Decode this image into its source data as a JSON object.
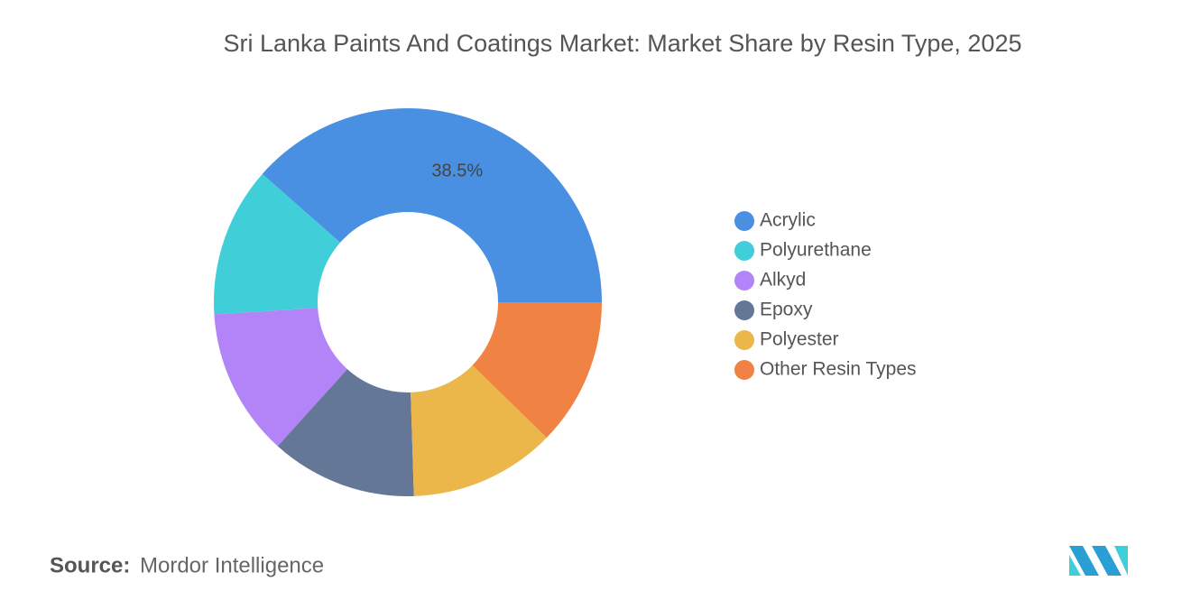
{
  "chart_data": {
    "type": "donut",
    "title": "Sri Lanka Paints And Coatings Market: Market Share by Resin Type, 2025",
    "categories": [
      "Acrylic",
      "Polyurethane",
      "Alkyd",
      "Epoxy",
      "Polyester",
      "Other Resin Types"
    ],
    "values": [
      38.5,
      12.5,
      12.3,
      12.2,
      12.2,
      12.3
    ],
    "value_labels": [
      "38.5%",
      null,
      null,
      null,
      null,
      null
    ],
    "colors": [
      "#4a90e2",
      "#40cfd9",
      "#b284f7",
      "#647796",
      "#ebb74a",
      "#f08243"
    ],
    "legend": "right"
  },
  "source": {
    "label": "Source:",
    "text": "Mordor Intelligence"
  }
}
